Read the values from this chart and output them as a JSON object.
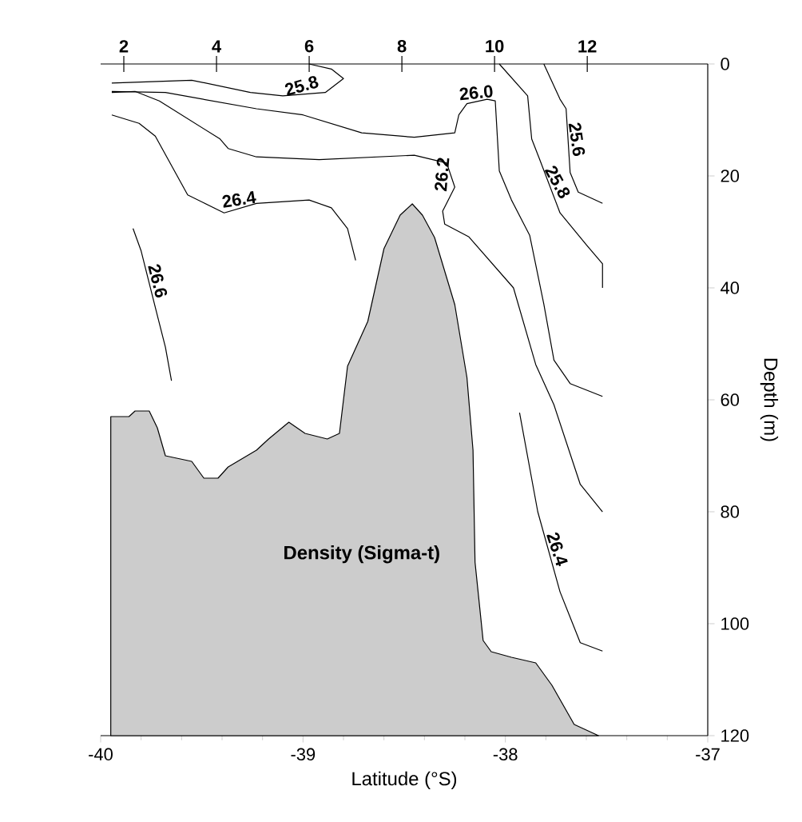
{
  "chart_data": {
    "type": "line",
    "xlabel": "Latitude (°S)",
    "ylabel": "Depth (m)",
    "annotations": [
      "Density (Sigma-t)"
    ],
    "x2lim": [
      1.5,
      14.6
    ],
    "x2ticks": [
      2,
      4,
      6,
      8,
      10,
      12
    ],
    "xlim": [
      -40,
      -37
    ],
    "xticks": [
      -40,
      -39,
      -38,
      -37
    ],
    "ylim": [
      120,
      0
    ],
    "yticks": [
      0,
      20,
      40,
      60,
      80,
      100,
      120
    ],
    "grid": false,
    "marker": "none",
    "line_style": "solid",
    "series": [
      {
        "type": "area",
        "color": "#cccccc",
        "x": [
          -39.95,
          -39.95,
          -39.86,
          -39.83,
          -39.76,
          -39.72,
          -39.68,
          -39.55,
          -39.49,
          -39.42,
          -39.37,
          -39.23,
          -39.17,
          -39.07,
          -38.99,
          -38.88,
          -38.82,
          -38.8,
          -38.78,
          -38.68,
          -38.6,
          -38.52,
          -38.46,
          -38.41,
          -38.35,
          -38.25,
          -38.19,
          -38.16,
          -38.15,
          -38.11,
          -38.07,
          -37.97,
          -37.85,
          -37.77,
          -37.66,
          -37.54
        ],
        "values": [
          120,
          63,
          63,
          62,
          62,
          65,
          70,
          71,
          74,
          74,
          72,
          69,
          67,
          64,
          66,
          67,
          66,
          60,
          54,
          46,
          33,
          27,
          25,
          27,
          31,
          43,
          56,
          69,
          89,
          103,
          105,
          106,
          107,
          111,
          118,
          120
        ]
      },
      {
        "name": "25.6",
        "color": "#000000",
        "x": [
          -37.81,
          -37.73,
          -37.7,
          -37.68,
          -37.64,
          -37.52
        ],
        "values": [
          0,
          6.3,
          8,
          19.4,
          22.9,
          24.9
        ]
      },
      {
        "name": "25.8",
        "color": "#000000",
        "x": [
          -39.945,
          -39.55,
          -39.26,
          -39.1,
          -38.89,
          -38.8,
          -38.86,
          -38.97
        ],
        "values": [
          3.4,
          2.9,
          5.1,
          5.7,
          5.1,
          2.6,
          0.9,
          0
        ]
      },
      {
        "name": "25.8",
        "color": "#000000",
        "x": [
          -38.03,
          -37.89,
          -37.87,
          -37.83,
          -37.73,
          -37.6,
          -37.52,
          -37.52
        ],
        "values": [
          0,
          5.7,
          13.4,
          17.1,
          26.6,
          32.3,
          35.7,
          40
        ]
      },
      {
        "name": "26.0",
        "color": "#000000",
        "x": [
          -39.945,
          -39.68,
          -39.23,
          -39.0,
          -38.71,
          -38.45,
          -38.25,
          -38.23,
          -38.19,
          -38.09,
          -38.05,
          -38.03,
          -37.97,
          -37.88,
          -37.81,
          -37.76,
          -37.68,
          -37.52
        ],
        "values": [
          4.9,
          5.1,
          8,
          9.1,
          12.3,
          13.1,
          12.3,
          9.1,
          7.1,
          6.3,
          6.6,
          19.1,
          24.3,
          30.6,
          42.9,
          52.9,
          57.1,
          59.4
        ]
      },
      {
        "name": "26.2",
        "color": "#000000",
        "x": [
          -39.945,
          -39.83,
          -39.71,
          -39.41,
          -39.37,
          -39.23,
          -38.92,
          -38.45,
          -38.29,
          -38.25,
          -38.31,
          -38.3,
          -38.18,
          -37.96,
          -37.85,
          -37.76,
          -37.63,
          -37.52
        ],
        "values": [
          5.1,
          4.9,
          6.6,
          13.4,
          15.1,
          16.6,
          17.1,
          16.3,
          17.7,
          22,
          26.3,
          28.6,
          30.9,
          40,
          53.7,
          60.9,
          75.1,
          80
        ]
      },
      {
        "name": "26.4",
        "color": "#000000",
        "x": [
          -39.945,
          -39.81,
          -39.73,
          -39.57,
          -39.39,
          -39.23,
          -38.97,
          -38.86,
          -38.78,
          -38.74
        ],
        "values": [
          9.1,
          10.6,
          12.9,
          23.4,
          26.6,
          24.9,
          24.3,
          25.7,
          29.4,
          35.1
        ]
      },
      {
        "name": "26.4",
        "color": "#000000",
        "x": [
          -37.93,
          -37.84,
          -37.73,
          -37.63,
          -37.52
        ],
        "values": [
          62.3,
          80,
          94.3,
          103.4,
          104.9
        ]
      },
      {
        "name": "26.6",
        "color": "#000000",
        "x": [
          -39.84,
          -39.8,
          -39.72,
          -39.68,
          -39.65
        ],
        "values": [
          29.4,
          33.4,
          44.9,
          50.6,
          56.6
        ]
      }
    ]
  }
}
